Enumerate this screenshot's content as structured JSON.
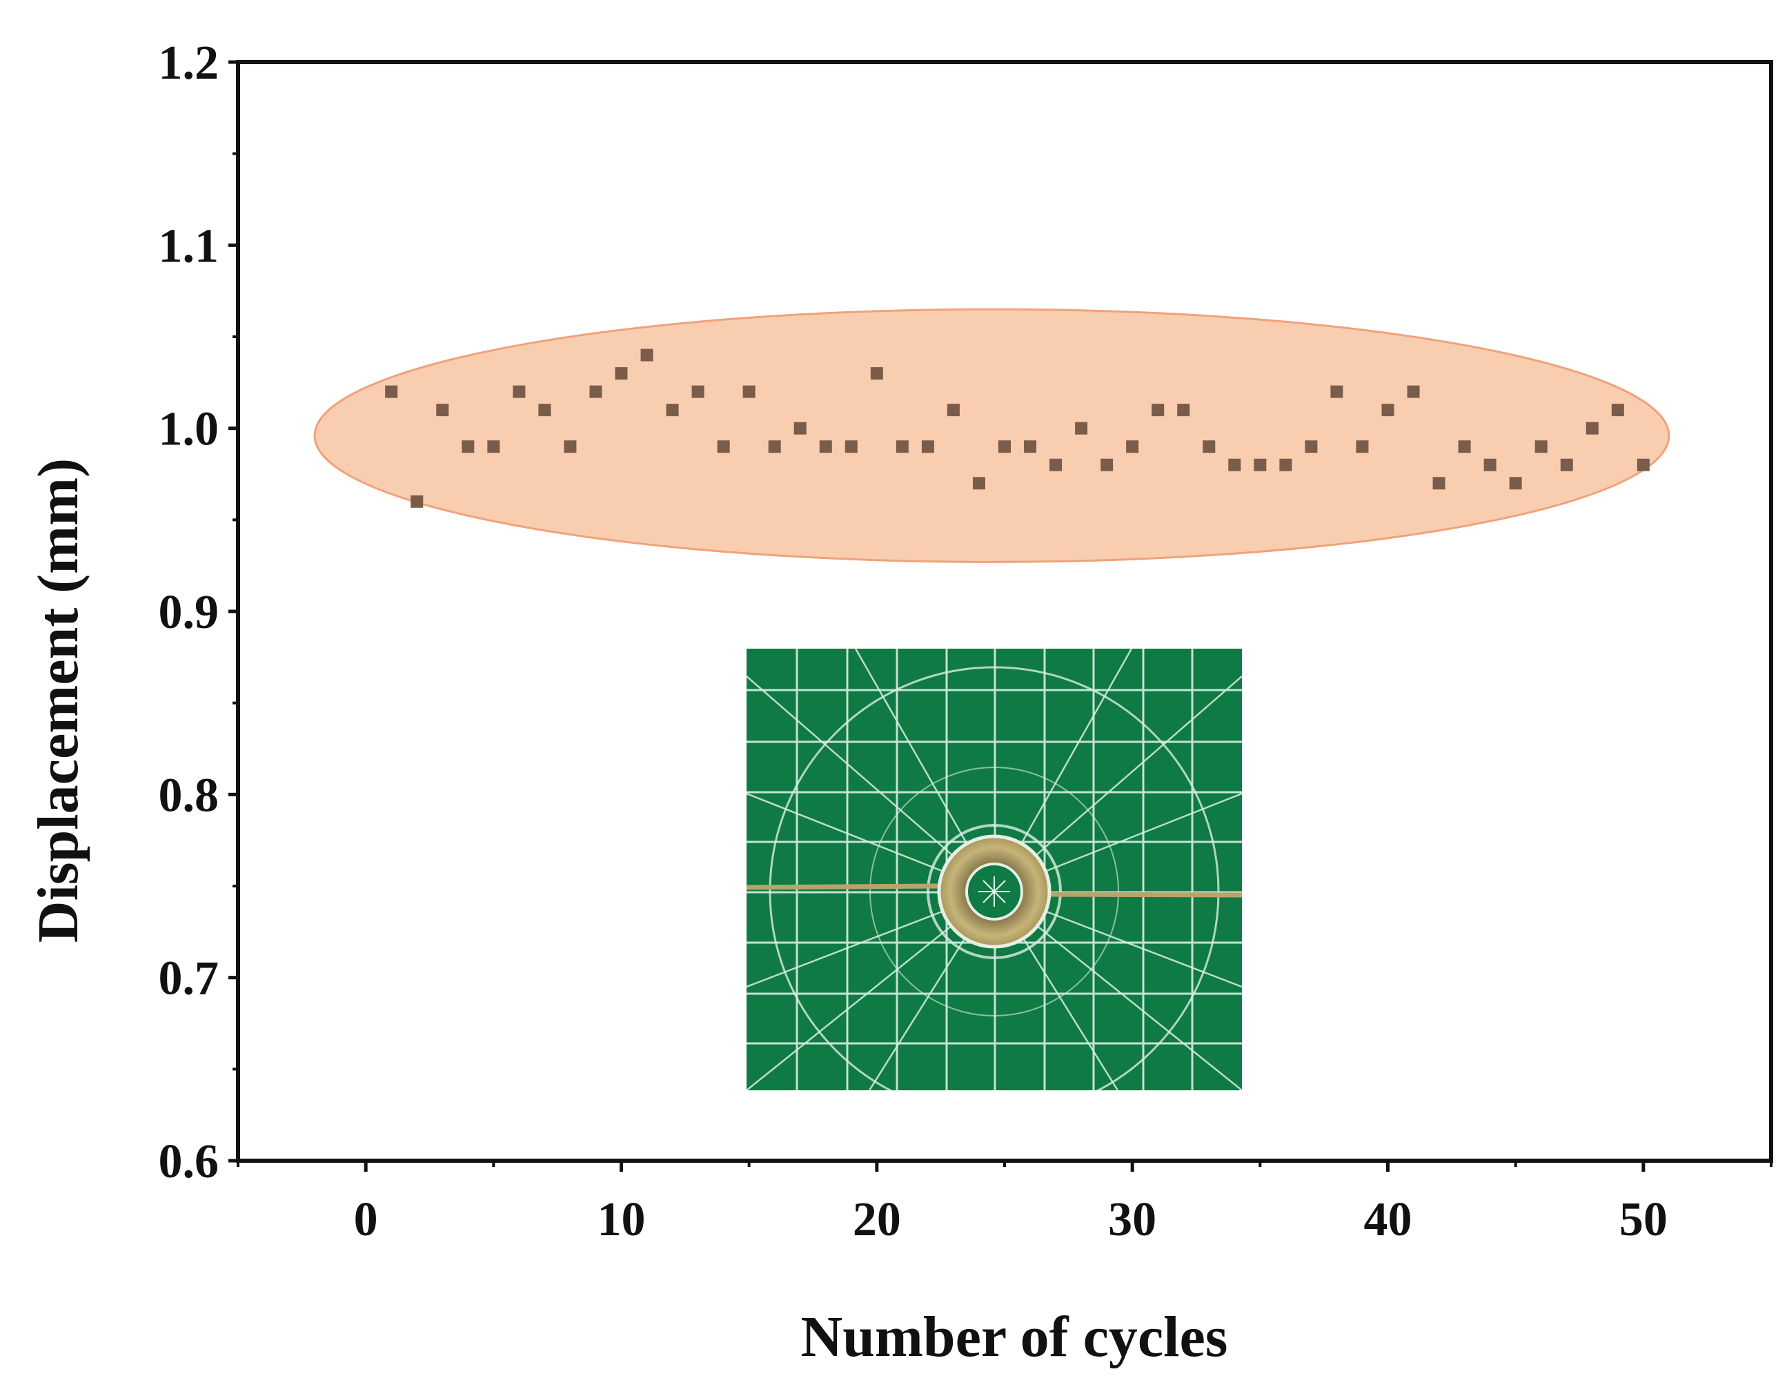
{
  "chart_data": {
    "type": "scatter",
    "xlabel": "Number of cycles",
    "ylabel": "Displacement (mm)",
    "xlim": [
      -5,
      55
    ],
    "ylim": [
      0.6,
      1.2
    ],
    "xticks": [
      0,
      10,
      20,
      30,
      40,
      50
    ],
    "yticks": [
      0.6,
      0.7,
      0.8,
      0.9,
      1.0,
      1.1,
      1.2
    ],
    "xtick_labels": [
      "0",
      "10",
      "20",
      "30",
      "40",
      "50"
    ],
    "ytick_labels": [
      "0.6",
      "0.7",
      "0.8",
      "0.9",
      "1.0",
      "1.1",
      "1.2"
    ],
    "grid": false,
    "legend": "none",
    "series": [
      {
        "name": "Displacement",
        "marker": "square",
        "color": "#7a5c4a",
        "x": [
          1,
          2,
          3,
          4,
          5,
          6,
          7,
          8,
          9,
          10,
          11,
          12,
          13,
          14,
          15,
          16,
          17,
          18,
          19,
          20,
          21,
          22,
          23,
          24,
          25,
          26,
          27,
          28,
          29,
          30,
          31,
          32,
          33,
          34,
          35,
          36,
          37,
          38,
          39,
          40,
          41,
          42,
          43,
          44,
          45,
          46,
          47,
          48,
          49,
          50
        ],
        "y": [
          1.02,
          0.96,
          1.01,
          0.99,
          0.99,
          1.02,
          1.01,
          0.99,
          1.02,
          1.03,
          1.04,
          1.01,
          1.02,
          0.99,
          1.02,
          0.99,
          1.0,
          0.99,
          0.99,
          1.03,
          0.99,
          0.99,
          1.01,
          0.97,
          0.99,
          0.99,
          0.98,
          1.0,
          0.98,
          0.99,
          1.01,
          1.01,
          0.99,
          0.98,
          0.98,
          0.98,
          0.99,
          1.02,
          0.99,
          1.01,
          1.02,
          0.97,
          0.99,
          0.98,
          0.97,
          0.99,
          0.98,
          1.0,
          1.01,
          0.98
        ]
      }
    ],
    "annotations": [
      {
        "kind": "highlight-ellipse",
        "color": "#f6b48c",
        "x_range": [
          -2,
          51
        ],
        "y_range": [
          0.927,
          1.065
        ]
      }
    ]
  },
  "inset": {
    "description_icon": "ring-sample-photo-icon",
    "background_color": "#0f7a44",
    "ring_color": "#b8a46a"
  },
  "colors": {
    "axis": "#111111",
    "ellipse_fill": "#f9cdb0",
    "ellipse_stroke": "#f0a27a"
  }
}
